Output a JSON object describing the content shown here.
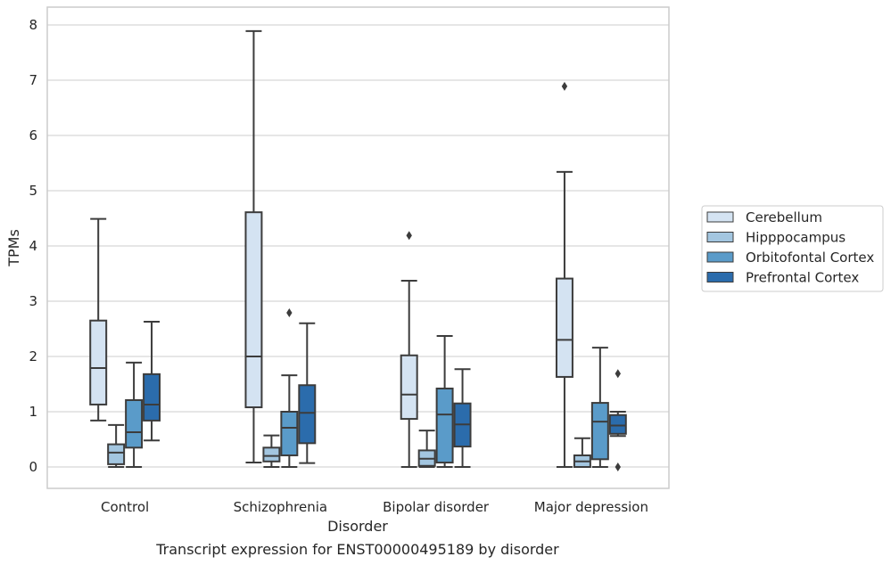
{
  "chart_data": {
    "type": "boxplot",
    "caption": "Transcript expression for ENST00000495189 by disorder",
    "xlabel": "Disorder",
    "ylabel": "TPMs",
    "ylim": [
      -0.38,
      8.3
    ],
    "yticks": [
      0,
      1,
      2,
      3,
      4,
      5,
      6,
      7,
      8
    ],
    "grid": "horizontal",
    "legend_position": "right",
    "categories": [
      "Control",
      "Schizophrenia",
      "Bipolar disorder",
      "Major depression"
    ],
    "series": [
      {
        "name": "Cerebellum",
        "color": "#d4e3f2",
        "boxes": [
          {
            "whisker_low": 0.84,
            "q1": 1.13,
            "median": 1.79,
            "q3": 2.65,
            "whisker_high": 4.49,
            "outliers": []
          },
          {
            "whisker_low": 0.08,
            "q1": 1.08,
            "median": 2.0,
            "q3": 4.61,
            "whisker_high": 7.89,
            "outliers": []
          },
          {
            "whisker_low": 0.0,
            "q1": 0.87,
            "median": 1.31,
            "q3": 2.02,
            "whisker_high": 3.37,
            "outliers": [
              4.19
            ]
          },
          {
            "whisker_low": 0.0,
            "q1": 1.63,
            "median": 2.3,
            "q3": 3.41,
            "whisker_high": 5.34,
            "outliers": [
              6.89
            ]
          }
        ]
      },
      {
        "name": "Hipppocampus",
        "color": "#a3c6e0",
        "boxes": [
          {
            "whisker_low": 0.0,
            "q1": 0.05,
            "median": 0.26,
            "q3": 0.41,
            "whisker_high": 0.76,
            "outliers": []
          },
          {
            "whisker_low": 0.0,
            "q1": 0.1,
            "median": 0.2,
            "q3": 0.35,
            "whisker_high": 0.57,
            "outliers": []
          },
          {
            "whisker_low": 0.0,
            "q1": 0.02,
            "median": 0.15,
            "q3": 0.3,
            "whisker_high": 0.66,
            "outliers": []
          },
          {
            "whisker_low": 0.0,
            "q1": 0.0,
            "median": 0.1,
            "q3": 0.21,
            "whisker_high": 0.52,
            "outliers": []
          }
        ]
      },
      {
        "name": "Orbitofontal Cortex",
        "color": "#5a9bc9",
        "boxes": [
          {
            "whisker_low": 0.0,
            "q1": 0.35,
            "median": 0.63,
            "q3": 1.21,
            "whisker_high": 1.89,
            "outliers": []
          },
          {
            "whisker_low": 0.0,
            "q1": 0.21,
            "median": 0.71,
            "q3": 1.0,
            "whisker_high": 1.66,
            "outliers": [
              2.79
            ]
          },
          {
            "whisker_low": 0.0,
            "q1": 0.08,
            "median": 0.95,
            "q3": 1.42,
            "whisker_high": 2.37,
            "outliers": []
          },
          {
            "whisker_low": 0.0,
            "q1": 0.14,
            "median": 0.82,
            "q3": 1.16,
            "whisker_high": 2.16,
            "outliers": []
          }
        ]
      },
      {
        "name": "Prefrontal Cortex",
        "color": "#2b6cac",
        "boxes": [
          {
            "whisker_low": 0.48,
            "q1": 0.84,
            "median": 1.13,
            "q3": 1.68,
            "whisker_high": 2.63,
            "outliers": []
          },
          {
            "whisker_low": 0.07,
            "q1": 0.43,
            "median": 0.98,
            "q3": 1.48,
            "whisker_high": 2.6,
            "outliers": []
          },
          {
            "whisker_low": 0.0,
            "q1": 0.37,
            "median": 0.77,
            "q3": 1.15,
            "whisker_high": 1.77,
            "outliers": []
          },
          {
            "whisker_low": 0.56,
            "q1": 0.6,
            "median": 0.75,
            "q3": 0.94,
            "whisker_high": 1.0,
            "outliers": [
              1.69,
              0.0
            ]
          }
        ]
      }
    ]
  }
}
